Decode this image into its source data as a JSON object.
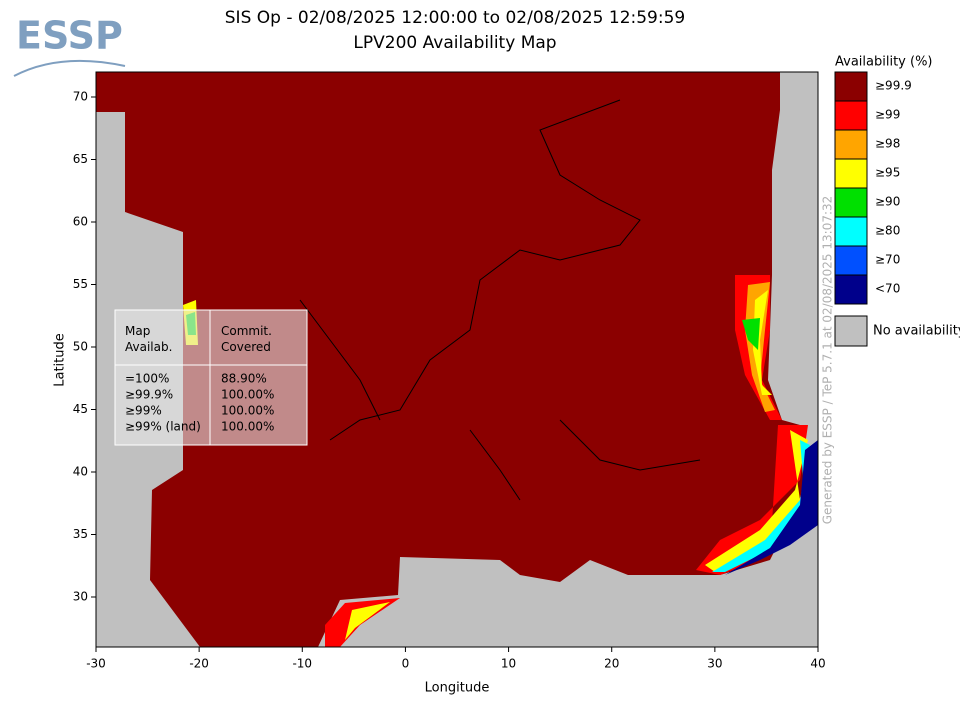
{
  "map": {
    "logo": "ESSP",
    "title": "SIS Op - 02/08/2025 12:00:00 to 02/08/2025 12:59:59",
    "subtitle": "LPV200 Availability Map",
    "x_label": "Longitude",
    "y_label": "Latitude",
    "xlim": [
      -30,
      40
    ],
    "ylim": [
      26,
      72
    ],
    "xticks": [
      -30,
      -20,
      -10,
      0,
      10,
      20,
      30,
      40
    ],
    "yticks": [
      30,
      35,
      40,
      45,
      50,
      55,
      60,
      65,
      70
    ],
    "legend": {
      "title": "Availability (%)",
      "items": [
        {
          "label": "≥99.9",
          "color": "#8b0000"
        },
        {
          "label": "≥99",
          "color": "#ff0000"
        },
        {
          "label": "≥98",
          "color": "#ffa500"
        },
        {
          "label": "≥95",
          "color": "#ffff00"
        },
        {
          "label": "≥90",
          "color": "#00e000"
        },
        {
          "label": "≥80",
          "color": "#00ffff"
        },
        {
          "label": "≥70",
          "color": "#0050ff"
        },
        {
          "label": "<70",
          "color": "#00008b"
        }
      ],
      "no_data": {
        "label": "No availability",
        "color": "#c0c0c0"
      }
    },
    "table": {
      "headers": [
        "Map\nAvailab.",
        "Commit.\nCovered"
      ],
      "rows": [
        [
          "=100%",
          "88.90%"
        ],
        [
          "≥99.9%",
          "100.00%"
        ],
        [
          "≥99%",
          "100.00%"
        ],
        [
          "≥99% (land)",
          "100.00%"
        ]
      ]
    },
    "footer": "Generated by ESSP / TeP 5.7.1 at 02/08/2025 13:07:32"
  }
}
